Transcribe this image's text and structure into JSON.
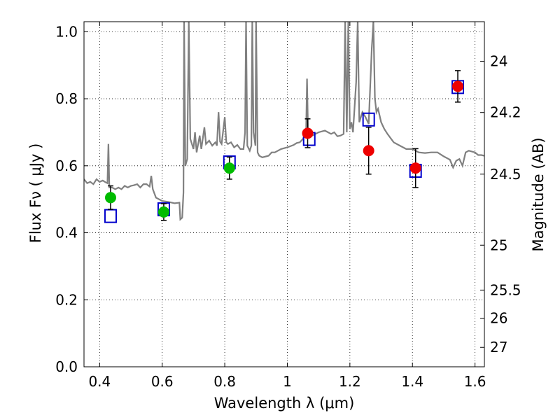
{
  "chart_data": {
    "type": "scatter",
    "title": "",
    "xlabel": "Wavelength  λ (μm)",
    "ylabel": "Flux  Fν  ( μJy )",
    "ylabel_right": "Magnitude (AB)",
    "xlim": [
      0.35,
      1.63
    ],
    "ylim": [
      0.0,
      1.03
    ],
    "xticks": [
      0.4,
      0.6,
      0.8,
      1.0,
      1.2,
      1.4,
      1.6
    ],
    "xtick_labels": [
      "0.4",
      "0.6",
      "0.8",
      "1",
      "1.2",
      "1.4",
      "1.6"
    ],
    "yticks": [
      0.0,
      0.2,
      0.4,
      0.6,
      0.8,
      1.0
    ],
    "ytick_labels": [
      "0.0",
      "0.2",
      "0.4",
      "0.6",
      "0.8",
      "1.0"
    ],
    "right_ticks": [
      {
        "label": "24",
        "flux": 0.912
      },
      {
        "label": "24.2",
        "flux": 0.759
      },
      {
        "label": "24.5",
        "flux": 0.575
      },
      {
        "label": "25",
        "flux": 0.363
      },
      {
        "label": "25.5",
        "flux": 0.229
      },
      {
        "label": "26",
        "flux": 0.145
      },
      {
        "label": "27",
        "flux": 0.058
      }
    ],
    "grid": true,
    "model_color": "#808080",
    "model_spectrum": [
      [
        0.35,
        0.56
      ],
      [
        0.36,
        0.548
      ],
      [
        0.37,
        0.552
      ],
      [
        0.38,
        0.545
      ],
      [
        0.39,
        0.56
      ],
      [
        0.4,
        0.552
      ],
      [
        0.41,
        0.556
      ],
      [
        0.42,
        0.55
      ],
      [
        0.425,
        0.548
      ],
      [
        0.428,
        0.665
      ],
      [
        0.431,
        0.535
      ],
      [
        0.44,
        0.535
      ],
      [
        0.45,
        0.53
      ],
      [
        0.46,
        0.535
      ],
      [
        0.47,
        0.53
      ],
      [
        0.48,
        0.54
      ],
      [
        0.49,
        0.535
      ],
      [
        0.5,
        0.54
      ],
      [
        0.51,
        0.542
      ],
      [
        0.52,
        0.545
      ],
      [
        0.53,
        0.535
      ],
      [
        0.54,
        0.545
      ],
      [
        0.55,
        0.545
      ],
      [
        0.56,
        0.538
      ],
      [
        0.565,
        0.57
      ],
      [
        0.57,
        0.53
      ],
      [
        0.58,
        0.505
      ],
      [
        0.6,
        0.495
      ],
      [
        0.62,
        0.492
      ],
      [
        0.64,
        0.488
      ],
      [
        0.655,
        0.49
      ],
      [
        0.658,
        0.44
      ],
      [
        0.664,
        0.445
      ],
      [
        0.668,
        0.52
      ],
      [
        0.67,
        1.03
      ],
      [
        0.674,
        0.6
      ],
      [
        0.68,
        0.62
      ],
      [
        0.685,
        1.03
      ],
      [
        0.69,
        0.68
      ],
      [
        0.7,
        0.65
      ],
      [
        0.705,
        0.7
      ],
      [
        0.71,
        0.64
      ],
      [
        0.72,
        0.69
      ],
      [
        0.725,
        0.65
      ],
      [
        0.735,
        0.715
      ],
      [
        0.74,
        0.665
      ],
      [
        0.75,
        0.675
      ],
      [
        0.76,
        0.66
      ],
      [
        0.77,
        0.67
      ],
      [
        0.775,
        0.66
      ],
      [
        0.78,
        0.76
      ],
      [
        0.785,
        0.672
      ],
      [
        0.79,
        0.665
      ],
      [
        0.8,
        0.745
      ],
      [
        0.805,
        0.67
      ],
      [
        0.81,
        0.665
      ],
      [
        0.82,
        0.67
      ],
      [
        0.83,
        0.655
      ],
      [
        0.84,
        0.662
      ],
      [
        0.85,
        0.65
      ],
      [
        0.86,
        0.65
      ],
      [
        0.865,
        0.7
      ],
      [
        0.868,
        1.03
      ],
      [
        0.872,
        0.66
      ],
      [
        0.88,
        0.645
      ],
      [
        0.885,
        0.66
      ],
      [
        0.888,
        1.03
      ],
      [
        0.892,
        0.7
      ],
      [
        0.898,
        0.66
      ],
      [
        0.9,
        1.03
      ],
      [
        0.905,
        0.64
      ],
      [
        0.91,
        0.63
      ],
      [
        0.92,
        0.625
      ],
      [
        0.94,
        0.63
      ],
      [
        0.95,
        0.64
      ],
      [
        0.96,
        0.64
      ],
      [
        0.98,
        0.65
      ],
      [
        1.0,
        0.655
      ],
      [
        1.02,
        0.662
      ],
      [
        1.03,
        0.668
      ],
      [
        1.04,
        0.67
      ],
      [
        1.05,
        0.68
      ],
      [
        1.06,
        0.7
      ],
      [
        1.063,
        0.86
      ],
      [
        1.066,
        0.71
      ],
      [
        1.08,
        0.69
      ],
      [
        1.09,
        0.695
      ],
      [
        1.1,
        0.7
      ],
      [
        1.12,
        0.705
      ],
      [
        1.14,
        0.695
      ],
      [
        1.15,
        0.7
      ],
      [
        1.16,
        0.688
      ],
      [
        1.17,
        0.69
      ],
      [
        1.18,
        0.695
      ],
      [
        1.185,
        1.03
      ],
      [
        1.19,
        0.7
      ],
      [
        1.195,
        1.03
      ],
      [
        1.2,
        0.71
      ],
      [
        1.205,
        0.73
      ],
      [
        1.21,
        0.7
      ],
      [
        1.22,
        0.85
      ],
      [
        1.225,
        1.03
      ],
      [
        1.23,
        0.73
      ],
      [
        1.24,
        0.76
      ],
      [
        1.25,
        0.745
      ],
      [
        1.26,
        0.725
      ],
      [
        1.27,
        0.95
      ],
      [
        1.275,
        1.03
      ],
      [
        1.28,
        0.8
      ],
      [
        1.285,
        0.76
      ],
      [
        1.29,
        0.77
      ],
      [
        1.3,
        0.73
      ],
      [
        1.31,
        0.71
      ],
      [
        1.32,
        0.695
      ],
      [
        1.34,
        0.67
      ],
      [
        1.36,
        0.66
      ],
      [
        1.38,
        0.65
      ],
      [
        1.4,
        0.65
      ],
      [
        1.42,
        0.64
      ],
      [
        1.44,
        0.638
      ],
      [
        1.46,
        0.64
      ],
      [
        1.48,
        0.64
      ],
      [
        1.5,
        0.628
      ],
      [
        1.52,
        0.618
      ],
      [
        1.53,
        0.595
      ],
      [
        1.54,
        0.615
      ],
      [
        1.55,
        0.62
      ],
      [
        1.56,
        0.6
      ],
      [
        1.57,
        0.64
      ],
      [
        1.58,
        0.645
      ],
      [
        1.6,
        0.64
      ],
      [
        1.61,
        0.632
      ],
      [
        1.62,
        0.632
      ],
      [
        1.63,
        0.63
      ]
    ],
    "model_photometry": {
      "name": "model",
      "marker": "open-square",
      "color": "#0000cc",
      "x": [
        0.435,
        0.605,
        0.815,
        1.07,
        1.26,
        1.41,
        1.545
      ],
      "y": [
        0.45,
        0.47,
        0.61,
        0.68,
        0.738,
        0.585,
        0.835
      ]
    },
    "observed": [
      {
        "x": 0.435,
        "y": 0.505,
        "err": 0.035,
        "color": "#00bb00"
      },
      {
        "x": 0.605,
        "y": 0.462,
        "err": 0.025,
        "color": "#00bb00"
      },
      {
        "x": 0.815,
        "y": 0.593,
        "err": 0.033,
        "color": "#00bb00"
      },
      {
        "x": 1.065,
        "y": 0.697,
        "err": 0.043,
        "color": "#ee0000"
      },
      {
        "x": 1.26,
        "y": 0.645,
        "err": 0.07,
        "color": "#ee0000"
      },
      {
        "x": 1.41,
        "y": 0.593,
        "err": 0.058,
        "color": "#ee0000"
      },
      {
        "x": 1.545,
        "y": 0.837,
        "err": 0.047,
        "color": "#ee0000"
      }
    ]
  }
}
